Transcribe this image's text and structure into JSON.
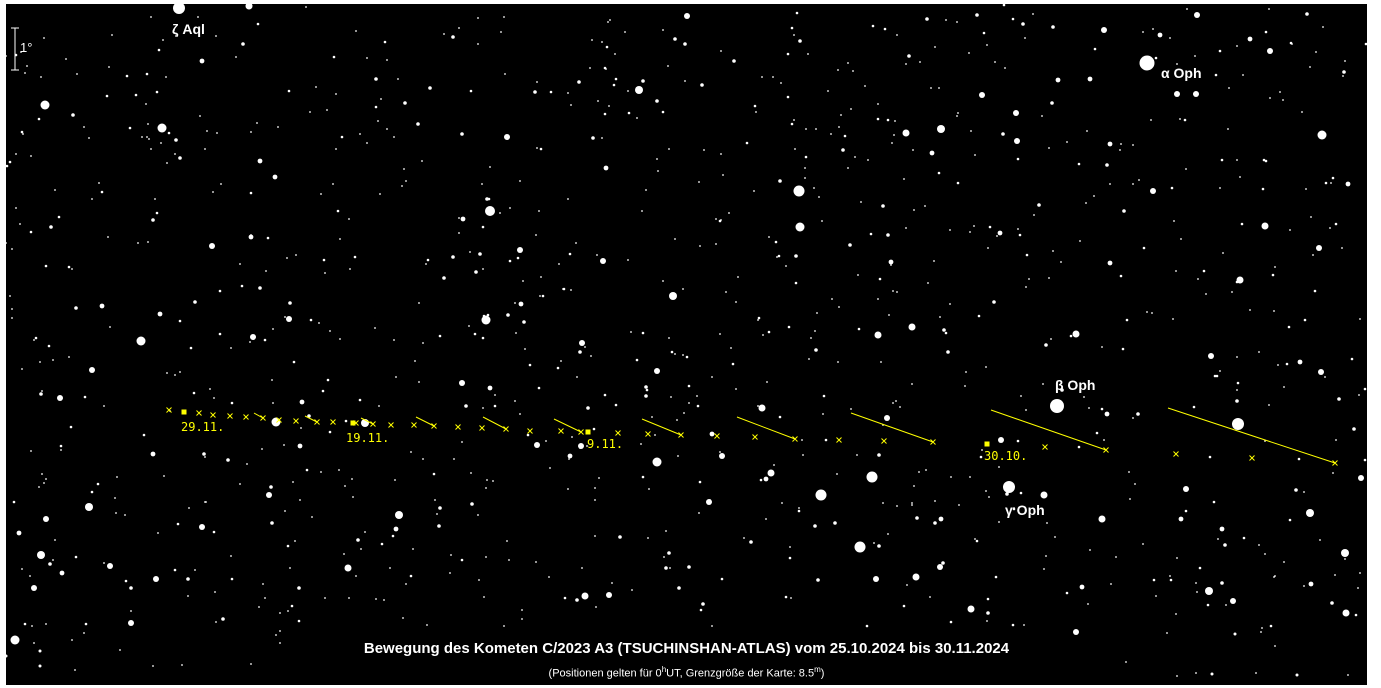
{
  "scale": {
    "label": "1°"
  },
  "star_labels": {
    "zeta_aql": "ζ Aql",
    "alpha_oph": "α Oph",
    "beta_oph": "β Oph",
    "gamma_oph": "γ Oph"
  },
  "date_labels": {
    "d2911": "29.11.",
    "d1911": "19.11.",
    "d0911": "9.11.",
    "d3010": "30.10."
  },
  "title": "Bewegung des Kometen C/2023 A3 (TSUCHINSHAN-ATLAS) vom 25.10.2024 bis 30.11.2024",
  "subtitle": {
    "pre": "(Positionen gelten für 0",
    "sup1": "h",
    "mid": "UT, Grenzgröße der Karte: 8.5",
    "sup2": "m",
    "post": ")"
  },
  "colors": {
    "background": "#000000",
    "stars": "#ffffff",
    "comet_track": "#ffff00"
  }
}
